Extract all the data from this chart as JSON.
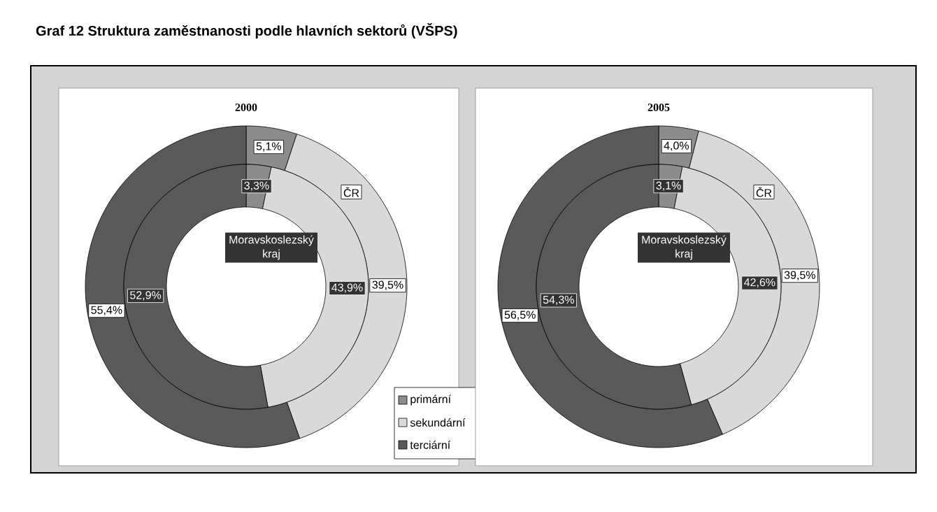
{
  "chart_data": [
    {
      "type": "donut",
      "title": "2000",
      "annotations": [
        "Graf 12 Struktura zaměstnanosti podle hlavních sektorů (VŠPS)"
      ],
      "categories": [
        "primární",
        "sekundární",
        "terciární"
      ],
      "colors": [
        "#8c8c8c",
        "#d9d9d9",
        "#5a5a5a"
      ],
      "legend": "bottom right",
      "series": [
        {
          "name": "ČR",
          "values": [
            5.1,
            39.5,
            55.4
          ],
          "value_labels": [
            "5,1%",
            "39,5%",
            "55,4%"
          ]
        },
        {
          "name": "Moravskoslezský kraj",
          "values": [
            3.3,
            43.9,
            52.9
          ],
          "value_labels": [
            "3,3%",
            "43,9%",
            "52,9%"
          ]
        }
      ]
    },
    {
      "type": "donut",
      "title": "2005",
      "colors": [
        "#8c8c8c",
        "#d9d9d9",
        "#5a5a5a"
      ],
      "series": [
        {
          "name": "ČR",
          "values": [
            4.0,
            39.5,
            56.5
          ],
          "value_labels": [
            "4,0%",
            "39,5%",
            "56,5%"
          ]
        },
        {
          "name": "Moravskoslezský kraj",
          "values": [
            3.1,
            42.6,
            54.3
          ],
          "value_labels": [
            "3,1%",
            "42,6%",
            "54,3%"
          ]
        }
      ]
    }
  ]
}
